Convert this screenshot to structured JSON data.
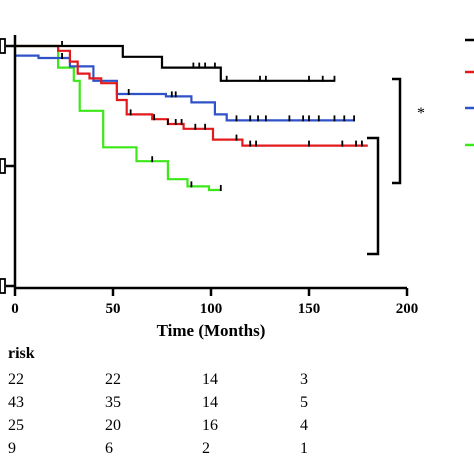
{
  "chart_data": {
    "type": "line",
    "subtype": "kaplan-meier-step",
    "xlabel": "Time (Months)",
    "ylabel": "",
    "xlim": [
      0,
      200
    ],
    "x_ticks": [
      "0",
      "50",
      "100",
      "150",
      "200"
    ],
    "series": [
      {
        "color": "#000000",
        "steps": [
          [
            0,
            1.0
          ],
          [
            55,
            1.0
          ],
          [
            55,
            0.955
          ],
          [
            75,
            0.955
          ],
          [
            75,
            0.91
          ],
          [
            105,
            0.91
          ],
          [
            105,
            0.855
          ],
          [
            163,
            0.855
          ]
        ],
        "censor_times": [
          24,
          91,
          94,
          97,
          102,
          108,
          125,
          128,
          150,
          157,
          163
        ]
      },
      {
        "color": "#e31a1c",
        "steps": [
          [
            0,
            1.0
          ],
          [
            22,
            1.0
          ],
          [
            22,
            0.98
          ],
          [
            28,
            0.98
          ],
          [
            28,
            0.935
          ],
          [
            32,
            0.935
          ],
          [
            32,
            0.885
          ],
          [
            38,
            0.885
          ],
          [
            38,
            0.865
          ],
          [
            44,
            0.865
          ],
          [
            44,
            0.845
          ],
          [
            52,
            0.845
          ],
          [
            52,
            0.775
          ],
          [
            57,
            0.775
          ],
          [
            57,
            0.715
          ],
          [
            70,
            0.715
          ],
          [
            70,
            0.695
          ],
          [
            78,
            0.695
          ],
          [
            78,
            0.675
          ],
          [
            86,
            0.675
          ],
          [
            86,
            0.655
          ],
          [
            101,
            0.655
          ],
          [
            101,
            0.61
          ],
          [
            116,
            0.61
          ],
          [
            116,
            0.585
          ],
          [
            180,
            0.585
          ]
        ],
        "censor_times": [
          59,
          71,
          78,
          82,
          85,
          92,
          97,
          113,
          120,
          123,
          150,
          167,
          174,
          177
        ]
      },
      {
        "color": "#2f52c8",
        "steps": [
          [
            0,
            0.96
          ],
          [
            12,
            0.96
          ],
          [
            12,
            0.95
          ],
          [
            28,
            0.95
          ],
          [
            28,
            0.915
          ],
          [
            40,
            0.915
          ],
          [
            40,
            0.855
          ],
          [
            52,
            0.855
          ],
          [
            52,
            0.8
          ],
          [
            77,
            0.8
          ],
          [
            77,
            0.79
          ],
          [
            90,
            0.79
          ],
          [
            90,
            0.765
          ],
          [
            102,
            0.765
          ],
          [
            102,
            0.715
          ],
          [
            108,
            0.715
          ],
          [
            108,
            0.69
          ],
          [
            173,
            0.69
          ]
        ],
        "censor_times": [
          24,
          58,
          80,
          82,
          113,
          120,
          124,
          128,
          140,
          147,
          150,
          155,
          163,
          168,
          173
        ]
      },
      {
        "color": "#3ce817",
        "steps": [
          [
            0,
            1.0
          ],
          [
            22,
            1.0
          ],
          [
            22,
            0.91
          ],
          [
            30,
            0.91
          ],
          [
            30,
            0.855
          ],
          [
            33,
            0.855
          ],
          [
            33,
            0.73
          ],
          [
            45,
            0.73
          ],
          [
            45,
            0.578
          ],
          [
            62,
            0.578
          ],
          [
            62,
            0.52
          ],
          [
            78,
            0.52
          ],
          [
            78,
            0.445
          ],
          [
            88,
            0.445
          ],
          [
            88,
            0.415
          ],
          [
            99,
            0.415
          ],
          [
            99,
            0.4
          ],
          [
            105,
            0.4
          ]
        ],
        "censor_times": [
          70,
          90,
          105
        ]
      }
    ]
  },
  "risk_table": {
    "title": "risk",
    "rows": [
      [
        "22",
        "22",
        "14",
        "3"
      ],
      [
        "43",
        "35",
        "14",
        "5"
      ],
      [
        "25",
        "20",
        "16",
        "4"
      ],
      [
        "9",
        "6",
        "2",
        "1"
      ]
    ]
  },
  "significance": "*"
}
